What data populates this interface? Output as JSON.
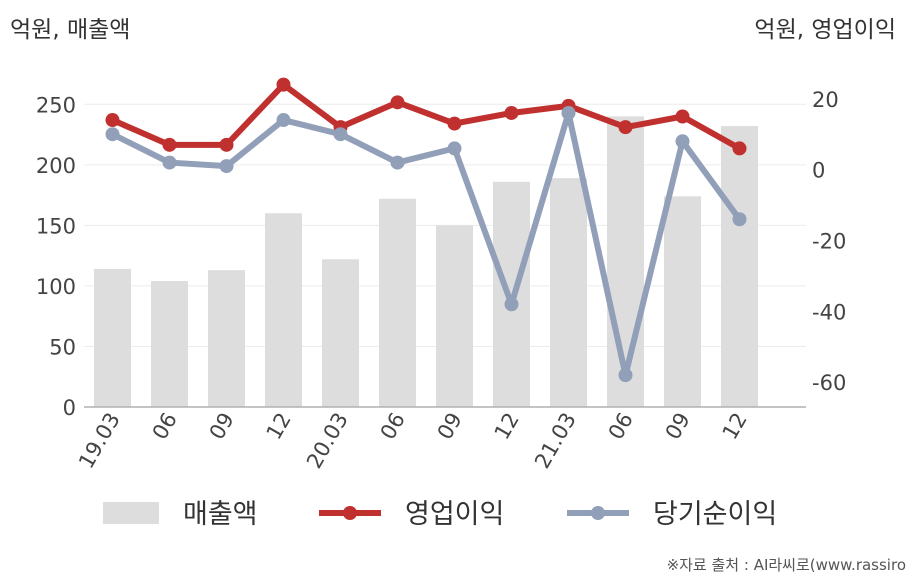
{
  "chart_data": {
    "type": "bar",
    "categories": [
      "19.03",
      "06",
      "09",
      "12",
      "20.03",
      "06",
      "09",
      "12",
      "21.03",
      "06",
      "09",
      "12"
    ],
    "y_left_label": "억원, 매출액",
    "y_right_label": "억원, 영업이익",
    "y_left_lim": [
      0,
      275
    ],
    "y_right_lim": [
      -67,
      27
    ],
    "y_left_ticks": [
      0,
      50,
      100,
      150,
      200,
      250
    ],
    "y_right_ticks": [
      -60,
      -40,
      -20,
      0,
      20
    ],
    "grid": true,
    "legend_position": "bottom",
    "series": [
      {
        "name": "매출액",
        "type": "bar",
        "axis": "left",
        "color": "#dddddd",
        "values": [
          114,
          104,
          113,
          160,
          122,
          172,
          150,
          186,
          189,
          240,
          174,
          232
        ]
      },
      {
        "name": "영업이익",
        "type": "line",
        "axis": "right",
        "color": "#c0302f",
        "values": [
          14,
          7,
          7,
          24,
          12,
          19,
          13,
          16,
          18,
          12,
          15,
          6
        ]
      },
      {
        "name": "당기순이익",
        "type": "line",
        "axis": "right",
        "color": "#919fb8",
        "values": [
          10,
          2,
          1,
          14,
          10,
          2,
          6,
          -38,
          16,
          -58,
          8,
          -14
        ]
      }
    ]
  },
  "source_text": "※자료 출처 : AI라씨로(www.rassiro"
}
